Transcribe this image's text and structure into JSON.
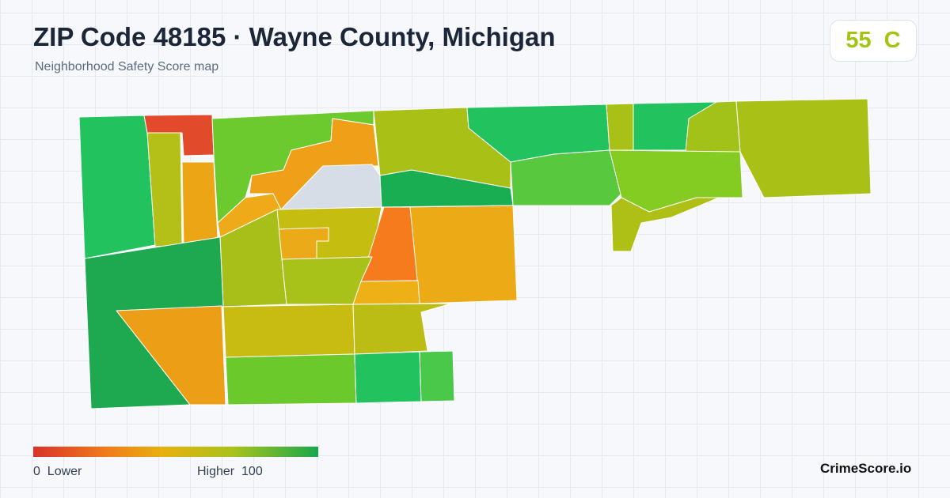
{
  "header": {
    "title": "ZIP Code 48185 · Wayne County, Michigan",
    "subtitle": "Neighborhood Safety Score map"
  },
  "score": {
    "value": 55,
    "grade": "C"
  },
  "legend": {
    "min": 0,
    "min_label": "Lower",
    "max_label": "Higher",
    "max": 100
  },
  "brand": "CrimeScore.io"
}
